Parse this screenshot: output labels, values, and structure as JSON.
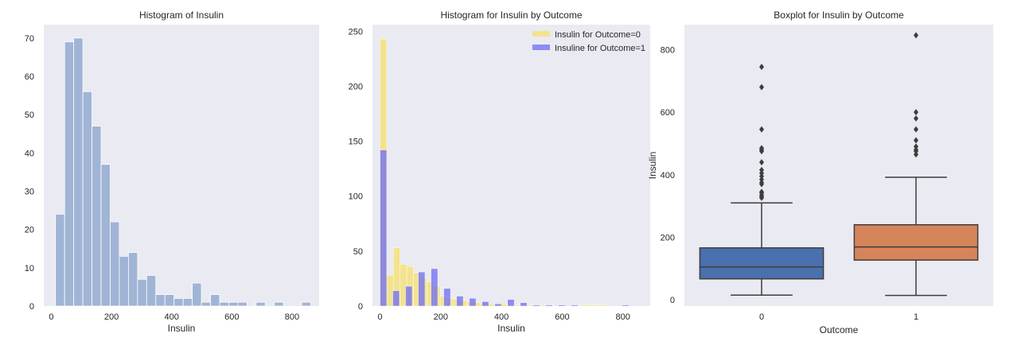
{
  "chart_data": [
    {
      "type": "bar",
      "title": "Histogram of Insulin",
      "xlabel": "Insulin",
      "ylabel": "",
      "xlim": [
        -25,
        890
      ],
      "ylim": [
        0,
        73.5
      ],
      "xticks": [
        "0",
        "200",
        "400",
        "600",
        "800"
      ],
      "yticks": [
        "0",
        "10",
        "20",
        "30",
        "40",
        "50",
        "60",
        "70"
      ],
      "grid": false,
      "bin_width": 30.3,
      "series": [
        {
          "color": "#a0b4d6",
          "bin_starts": [
            14,
            44.3,
            74.6,
            104.9,
            135.2,
            165.5,
            195.8,
            226.1,
            256.4,
            286.7,
            317,
            347.3,
            377.6,
            407.9,
            438.2,
            468.5,
            498.8,
            529.1,
            559.4,
            589.7,
            620,
            680.6,
            741.2,
            832.1
          ],
          "values": [
            24,
            69,
            70,
            56,
            47,
            37,
            22,
            13,
            14,
            7,
            8,
            3,
            3,
            2,
            2,
            6,
            1,
            3,
            1,
            1,
            1,
            1,
            1,
            1
          ]
        }
      ]
    },
    {
      "type": "bar",
      "title": "Histogram for Insulin by Outcome",
      "xlabel": "Insulin",
      "ylabel": "",
      "xlim": [
        -25,
        890
      ],
      "ylim": [
        0,
        256
      ],
      "xticks": [
        "0",
        "200",
        "400",
        "600",
        "800"
      ],
      "yticks": [
        "0",
        "50",
        "100",
        "150",
        "200",
        "250"
      ],
      "grid": false,
      "bin_width": 22,
      "legend_position": "upper-right",
      "series": [
        {
          "name": "Insulin for Outcome=0",
          "color": "#f5e06e",
          "bin_starts": [
            0,
            22,
            44,
            66,
            88,
            110,
            132,
            154,
            176,
            198,
            220,
            242,
            264,
            286,
            308,
            330,
            352,
            374,
            396,
            418,
            440,
            462,
            484,
            506,
            528,
            550,
            660,
            682,
            704,
            726
          ],
          "values": [
            243,
            28,
            53,
            38,
            36,
            30,
            26,
            22,
            18,
            9,
            7,
            6,
            5,
            4,
            3,
            2,
            2,
            2,
            2,
            1,
            1,
            1,
            1,
            1,
            1,
            1,
            1,
            1,
            1,
            1
          ]
        },
        {
          "name": "Insuline for Outcome=1",
          "color": "#6c6cf2",
          "bin_starts": [
            0,
            42,
            84,
            126,
            168,
            210,
            252,
            294,
            336,
            378,
            420,
            462,
            504,
            546,
            588,
            630,
            798
          ],
          "values": [
            142,
            14,
            18,
            31,
            34,
            16,
            9,
            7,
            4,
            2,
            6,
            3,
            1,
            1,
            1,
            1,
            1
          ]
        }
      ]
    },
    {
      "type": "box",
      "title": "Boxplot for Insulin by Outcome",
      "xlabel": "Outcome",
      "ylabel": "Insulin",
      "ylim": [
        -20,
        880
      ],
      "yticks": [
        "0",
        "200",
        "400",
        "600",
        "800"
      ],
      "categories": [
        "0",
        "1"
      ],
      "grid": false,
      "series": [
        {
          "category": "0",
          "color": "#4a70ad",
          "whisker_low": 15,
          "q1": 67,
          "median": 105,
          "q3": 166,
          "whisker_high": 310,
          "outliers": [
            326,
            330,
            335,
            342,
            345,
            370,
            375,
            385,
            395,
            405,
            415,
            440,
            475,
            480,
            485,
            545,
            680,
            745
          ]
        },
        {
          "category": "1",
          "color": "#d6845a",
          "whisker_low": 14,
          "q1": 127,
          "median": 169,
          "q3": 240,
          "whisker_high": 392,
          "outliers": [
            465,
            475,
            480,
            490,
            510,
            545,
            580,
            600,
            846
          ]
        }
      ]
    }
  ]
}
